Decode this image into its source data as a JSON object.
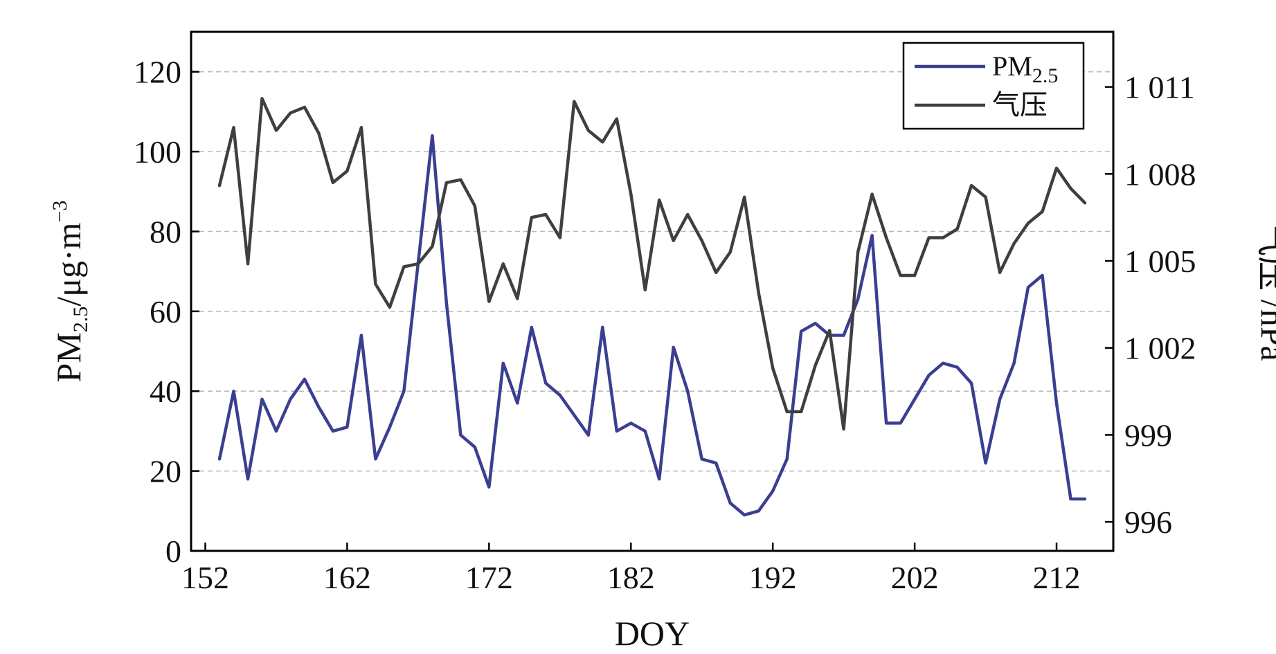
{
  "chart_data": {
    "type": "line",
    "title": "",
    "xlabel": "DOY",
    "ylabel_left": {
      "base": "PM",
      "sub": "2.5",
      "rest": "/μg·m",
      "sup": "−3"
    },
    "ylabel_right": "气压 /hPa",
    "xlim": [
      151,
      216
    ],
    "ylim_left": [
      0,
      130
    ],
    "ylim_right": [
      995.0,
      1012.9
    ],
    "xticks": [
      152,
      162,
      172,
      182,
      192,
      202,
      212
    ],
    "xtick_labels": [
      "152",
      "162",
      "172",
      "182",
      "192",
      "202",
      "212"
    ],
    "yticks_left": [
      0,
      20,
      40,
      60,
      80,
      100,
      120
    ],
    "ytick_labels_left": [
      "0",
      "20",
      "40",
      "60",
      "80",
      "100",
      "120"
    ],
    "yticks_right": [
      996,
      999,
      1002,
      1005,
      1008,
      1011
    ],
    "ytick_labels_right": [
      "996",
      "999",
      "1 002",
      "1 005",
      "1 008",
      "1 011"
    ],
    "grid": "horizontal-dashed",
    "legend_position": "top-right",
    "series": [
      {
        "name_base": "PM",
        "name_sub": "2.5",
        "axis": "left",
        "color": "#3a3f91",
        "x": [
          153,
          154,
          155,
          156,
          157,
          158,
          159,
          160,
          161,
          162,
          163,
          164,
          165,
          166,
          167,
          168,
          169,
          170,
          171,
          172,
          173,
          174,
          175,
          176,
          177,
          178,
          179,
          180,
          181,
          182,
          183,
          184,
          185,
          186,
          187,
          188,
          189,
          190,
          191,
          192,
          193,
          194,
          195,
          196,
          197,
          198,
          199,
          200,
          201,
          202,
          203,
          204,
          205,
          206,
          207,
          208,
          209,
          210,
          211,
          212,
          213,
          214
        ],
        "y": [
          23,
          40,
          18,
          38,
          30,
          38,
          43,
          36,
          30,
          31,
          54,
          23,
          31,
          40,
          72,
          104,
          62,
          29,
          26,
          16,
          47,
          37,
          56,
          42,
          39,
          34,
          29,
          56,
          30,
          32,
          30,
          18,
          51,
          40,
          23,
          22,
          12,
          9,
          10,
          15,
          23,
          55,
          57,
          54,
          54,
          63,
          79,
          32,
          32,
          38,
          44,
          47,
          46,
          42,
          22,
          38,
          47,
          66,
          69,
          37,
          13,
          13
        ]
      },
      {
        "name": "气压",
        "axis": "right",
        "color": "#3f3f3f",
        "x": [
          153,
          154,
          155,
          156,
          157,
          158,
          159,
          160,
          161,
          162,
          163,
          164,
          165,
          166,
          167,
          168,
          169,
          170,
          171,
          172,
          173,
          174,
          175,
          176,
          177,
          178,
          179,
          180,
          181,
          182,
          183,
          184,
          185,
          186,
          187,
          188,
          189,
          190,
          191,
          192,
          193,
          194,
          195,
          196,
          197,
          198,
          199,
          200,
          201,
          202,
          203,
          204,
          205,
          206,
          207,
          208,
          209,
          210,
          211,
          212,
          213,
          214
        ],
        "y": [
          1007.6,
          1009.6,
          1004.9,
          1010.6,
          1009.5,
          1010.1,
          1010.3,
          1009.4,
          1007.7,
          1008.1,
          1009.6,
          1004.2,
          1003.4,
          1004.8,
          1004.9,
          1005.5,
          1007.7,
          1007.8,
          1006.9,
          1003.6,
          1004.9,
          1003.7,
          1006.5,
          1006.6,
          1005.8,
          1010.5,
          1009.5,
          1009.1,
          1009.9,
          1007.3,
          1004.0,
          1007.1,
          1005.7,
          1006.6,
          1005.7,
          1004.6,
          1005.3,
          1007.2,
          1003.9,
          1001.3,
          999.8,
          999.8,
          1001.4,
          1002.6,
          999.2,
          1005.3,
          1007.3,
          1005.8,
          1004.5,
          1004.5,
          1005.8,
          1005.8,
          1006.1,
          1007.6,
          1007.2,
          1004.6,
          1005.6,
          1006.3,
          1006.7,
          1008.2,
          1007.5,
          1007.0
        ]
      }
    ]
  }
}
